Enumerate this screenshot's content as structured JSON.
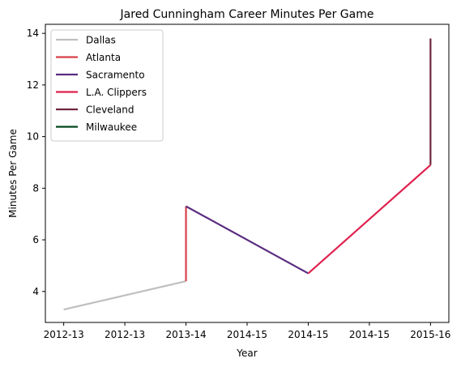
{
  "chart_data": {
    "type": "line",
    "title": "Jared Cunningham Career Minutes Per Game",
    "xlabel": "Year",
    "ylabel": "Minutes Per Game",
    "x_tick_labels": [
      "2012-13",
      "2012-13",
      "2013-14",
      "2014-15",
      "2014-15",
      "2014-15",
      "2015-16"
    ],
    "x_tick_values": [
      0,
      0.5,
      1,
      1.5,
      2,
      2.5,
      3
    ],
    "y_ticks": [
      4,
      6,
      8,
      10,
      12,
      14
    ],
    "y_tick_labels": [
      "4",
      "6",
      "8",
      "10",
      "12",
      "14"
    ],
    "xlim": [
      -0.15,
      3.15
    ],
    "ylim": [
      2.8,
      14.35
    ],
    "grid": false,
    "legend_position": "top-left",
    "series": [
      {
        "name": "Dallas",
        "color": "#BFBFBF",
        "points": [
          [
            0,
            3.3
          ],
          [
            1,
            4.4
          ]
        ]
      },
      {
        "name": "Atlanta",
        "color": "#D9404B",
        "points": [
          [
            1,
            4.4
          ],
          [
            1,
            7.3
          ]
        ]
      },
      {
        "name": "Sacramento",
        "color": "#5A2D81",
        "points": [
          [
            1,
            7.3
          ],
          [
            2,
            4.7
          ]
        ]
      },
      {
        "name": "L.A. Clippers",
        "color": "#E0224E",
        "points": [
          [
            2,
            4.7
          ],
          [
            3,
            8.9
          ]
        ]
      },
      {
        "name": "Cleveland",
        "color": "#6F263D",
        "points": [
          [
            3,
            8.9
          ],
          [
            3,
            13.8
          ]
        ]
      },
      {
        "name": "Milwaukee",
        "color": "#00471B",
        "points": []
      }
    ]
  }
}
